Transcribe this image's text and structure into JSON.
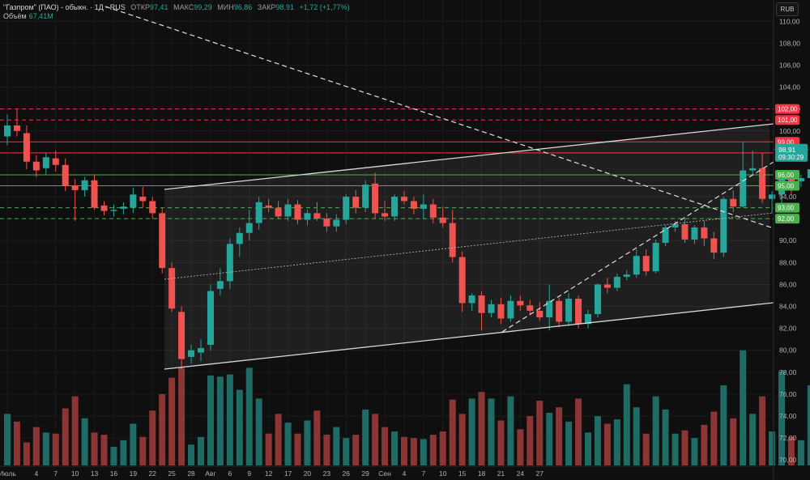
{
  "legend": {
    "title": "\"Газпром\" (ПАО) - обыкн. · 1Д · RUS",
    "open_label": "ОТКР",
    "open": "97,41",
    "high_label": "МАКС",
    "high": "99,29",
    "low_label": "МИН",
    "low": "96,86",
    "close_label": "ЗАКР",
    "close": "98,91",
    "change": "+1,72 (+1,77%)",
    "volume_label": "Объём",
    "volume": "67,41M"
  },
  "currency": "RUB",
  "price_tag": {
    "price": "98,91",
    "countdown": "09:30:29"
  },
  "colors": {
    "up": "#26a69a",
    "down": "#ef5350",
    "red_level": "#f23645",
    "green_level": "#4caf50",
    "background": "#0f0f0f"
  },
  "chart_data": {
    "type": "candlestick",
    "y_axis": {
      "min": 69.5,
      "max": 111.2,
      "ticks": [
        "70,00",
        "72,00",
        "74,00",
        "76,00",
        "78,00",
        "80,00",
        "82,00",
        "84,00",
        "86,00",
        "88,00",
        "90,00",
        "92,00",
        "94,00",
        "96,00",
        "98,00",
        "100,00",
        "102,00",
        "104,00",
        "106,00",
        "108,00",
        "110,00"
      ]
    },
    "x_ticks": [
      {
        "i": 0,
        "label": "Июль"
      },
      {
        "i": 3,
        "label": "4"
      },
      {
        "i": 5,
        "label": "7"
      },
      {
        "i": 7,
        "label": "10"
      },
      {
        "i": 9,
        "label": "13"
      },
      {
        "i": 11,
        "label": "16"
      },
      {
        "i": 13,
        "label": "19"
      },
      {
        "i": 15,
        "label": "22"
      },
      {
        "i": 17,
        "label": "25"
      },
      {
        "i": 19,
        "label": "28"
      },
      {
        "i": 21,
        "label": "Авг"
      },
      {
        "i": 23,
        "label": "6"
      },
      {
        "i": 25,
        "label": "9"
      },
      {
        "i": 27,
        "label": "12"
      },
      {
        "i": 29,
        "label": "17"
      },
      {
        "i": 31,
        "label": "20"
      },
      {
        "i": 33,
        "label": "23"
      },
      {
        "i": 35,
        "label": "26"
      },
      {
        "i": 37,
        "label": "29"
      },
      {
        "i": 39,
        "label": "Сен"
      },
      {
        "i": 41,
        "label": "4"
      },
      {
        "i": 43,
        "label": "7"
      },
      {
        "i": 45,
        "label": "10"
      },
      {
        "i": 47,
        "label": "15"
      },
      {
        "i": 49,
        "label": "18"
      },
      {
        "i": 51,
        "label": "21"
      },
      {
        "i": 53,
        "label": "24"
      },
      {
        "i": 55,
        "label": "27"
      }
    ],
    "candles": [
      {
        "o": 99.5,
        "h": 101.5,
        "l": 98.7,
        "c": 100.5,
        "v": 74.2
      },
      {
        "o": 100.5,
        "h": 102.0,
        "l": 99.5,
        "c": 100.0,
        "v": 73.5
      },
      {
        "o": 99.8,
        "h": 100.5,
        "l": 96.5,
        "c": 97.2,
        "v": 71.6
      },
      {
        "o": 97.2,
        "h": 97.8,
        "l": 95.8,
        "c": 96.4,
        "v": 73.0
      },
      {
        "o": 96.6,
        "h": 98.0,
        "l": 96.0,
        "c": 97.6,
        "v": 72.5
      },
      {
        "o": 97.5,
        "h": 98.2,
        "l": 96.3,
        "c": 96.9,
        "v": 72.4
      },
      {
        "o": 96.9,
        "h": 97.5,
        "l": 94.5,
        "c": 95.0,
        "v": 74.7
      },
      {
        "o": 95.0,
        "h": 95.6,
        "l": 91.8,
        "c": 94.6,
        "v": 75.8
      },
      {
        "o": 94.6,
        "h": 95.8,
        "l": 94.0,
        "c": 95.5,
        "v": 73.8
      },
      {
        "o": 95.5,
        "h": 96.0,
        "l": 92.8,
        "c": 93.0,
        "v": 72.5
      },
      {
        "o": 93.2,
        "h": 93.6,
        "l": 92.3,
        "c": 92.7,
        "v": 72.3
      },
      {
        "o": 92.7,
        "h": 93.3,
        "l": 92.2,
        "c": 92.8,
        "v": 71.2
      },
      {
        "o": 92.9,
        "h": 93.5,
        "l": 92.4,
        "c": 93.1,
        "v": 71.8
      },
      {
        "o": 93.0,
        "h": 94.8,
        "l": 92.5,
        "c": 94.2,
        "v": 73.3
      },
      {
        "o": 94.0,
        "h": 94.9,
        "l": 93.0,
        "c": 93.6,
        "v": 72.1
      },
      {
        "o": 93.6,
        "h": 94.0,
        "l": 92.0,
        "c": 92.5,
        "v": 74.5
      },
      {
        "o": 92.5,
        "h": 93.0,
        "l": 87.0,
        "c": 87.5,
        "v": 76.0
      },
      {
        "o": 87.5,
        "h": 88.0,
        "l": 83.5,
        "c": 83.8,
        "v": 77.5
      },
      {
        "o": 83.5,
        "h": 84.0,
        "l": 78.3,
        "c": 79.2,
        "v": 78.4
      },
      {
        "o": 79.4,
        "h": 80.5,
        "l": 78.8,
        "c": 80.0,
        "v": 71.4
      },
      {
        "o": 79.8,
        "h": 81.0,
        "l": 79.0,
        "c": 80.2,
        "v": 72.1
      },
      {
        "o": 80.5,
        "h": 86.0,
        "l": 80.0,
        "c": 85.4,
        "v": 77.7
      },
      {
        "o": 85.6,
        "h": 87.5,
        "l": 85.0,
        "c": 86.3,
        "v": 77.6
      },
      {
        "o": 86.3,
        "h": 90.2,
        "l": 85.6,
        "c": 89.7,
        "v": 77.8
      },
      {
        "o": 89.7,
        "h": 91.2,
        "l": 88.5,
        "c": 90.7,
        "v": 76.4
      },
      {
        "o": 90.7,
        "h": 92.8,
        "l": 90.0,
        "c": 91.6,
        "v": 78.4
      },
      {
        "o": 91.6,
        "h": 94.0,
        "l": 91.0,
        "c": 93.5,
        "v": 75.6
      },
      {
        "o": 93.2,
        "h": 93.8,
        "l": 92.6,
        "c": 93.0,
        "v": 72.4
      },
      {
        "o": 93.0,
        "h": 93.6,
        "l": 92.0,
        "c": 92.2,
        "v": 74.2
      },
      {
        "o": 92.2,
        "h": 93.8,
        "l": 91.8,
        "c": 93.3,
        "v": 73.4
      },
      {
        "o": 93.3,
        "h": 93.7,
        "l": 91.5,
        "c": 91.9,
        "v": 72.4
      },
      {
        "o": 91.9,
        "h": 92.8,
        "l": 91.4,
        "c": 92.5,
        "v": 73.6
      },
      {
        "o": 92.5,
        "h": 93.5,
        "l": 91.8,
        "c": 92.0,
        "v": 74.5
      },
      {
        "o": 92.0,
        "h": 92.5,
        "l": 90.8,
        "c": 91.3,
        "v": 72.3
      },
      {
        "o": 91.3,
        "h": 92.4,
        "l": 90.8,
        "c": 91.9,
        "v": 73.0
      },
      {
        "o": 91.9,
        "h": 94.2,
        "l": 91.5,
        "c": 94.0,
        "v": 72.0
      },
      {
        "o": 94.0,
        "h": 94.6,
        "l": 92.5,
        "c": 93.0,
        "v": 72.3
      },
      {
        "o": 93.0,
        "h": 95.5,
        "l": 92.6,
        "c": 95.1,
        "v": 74.6
      },
      {
        "o": 95.2,
        "h": 96.2,
        "l": 92.0,
        "c": 92.5,
        "v": 74.2
      },
      {
        "o": 92.5,
        "h": 93.6,
        "l": 91.8,
        "c": 92.2,
        "v": 73.0
      },
      {
        "o": 92.2,
        "h": 94.2,
        "l": 91.8,
        "c": 94.0,
        "v": 72.6
      },
      {
        "o": 94.0,
        "h": 94.5,
        "l": 93.3,
        "c": 93.6,
        "v": 72.1
      },
      {
        "o": 93.6,
        "h": 94.0,
        "l": 92.4,
        "c": 92.9,
        "v": 72.0
      },
      {
        "o": 92.9,
        "h": 94.2,
        "l": 92.0,
        "c": 93.3,
        "v": 71.9
      },
      {
        "o": 93.3,
        "h": 93.8,
        "l": 91.6,
        "c": 92.1,
        "v": 72.3
      },
      {
        "o": 92.1,
        "h": 93.1,
        "l": 91.2,
        "c": 91.6,
        "v": 72.6
      },
      {
        "o": 91.6,
        "h": 92.8,
        "l": 88.0,
        "c": 88.5,
        "v": 75.5
      },
      {
        "o": 88.5,
        "h": 89.0,
        "l": 83.5,
        "c": 84.3,
        "v": 74.2
      },
      {
        "o": 84.3,
        "h": 85.2,
        "l": 83.6,
        "c": 85.0,
        "v": 75.6
      },
      {
        "o": 85.0,
        "h": 85.4,
        "l": 81.8,
        "c": 83.4,
        "v": 76.2
      },
      {
        "o": 83.4,
        "h": 84.6,
        "l": 83.0,
        "c": 84.2,
        "v": 75.6
      },
      {
        "o": 84.2,
        "h": 84.8,
        "l": 82.4,
        "c": 82.9,
        "v": 73.6
      },
      {
        "o": 82.9,
        "h": 85.0,
        "l": 82.6,
        "c": 84.5,
        "v": 75.8
      },
      {
        "o": 84.5,
        "h": 85.0,
        "l": 83.6,
        "c": 84.1,
        "v": 72.8
      },
      {
        "o": 84.1,
        "h": 84.6,
        "l": 83.2,
        "c": 83.6,
        "v": 74.0
      },
      {
        "o": 83.6,
        "h": 84.4,
        "l": 82.7,
        "c": 83.0,
        "v": 75.4
      },
      {
        "o": 83.0,
        "h": 86.0,
        "l": 81.8,
        "c": 84.5,
        "v": 74.3
      },
      {
        "o": 84.5,
        "h": 84.8,
        "l": 82.1,
        "c": 82.6,
        "v": 74.8
      },
      {
        "o": 82.6,
        "h": 85.2,
        "l": 82.2,
        "c": 84.7,
        "v": 73.5
      },
      {
        "o": 84.7,
        "h": 85.0,
        "l": 82.0,
        "c": 82.4,
        "v": 75.6
      },
      {
        "o": 82.4,
        "h": 83.7,
        "l": 82.0,
        "c": 83.3,
        "v": 72.5
      },
      {
        "o": 83.3,
        "h": 86.1,
        "l": 83.0,
        "c": 86.0,
        "v": 74.0
      },
      {
        "o": 86.0,
        "h": 86.6,
        "l": 85.2,
        "c": 85.7,
        "v": 73.3
      },
      {
        "o": 85.7,
        "h": 87.0,
        "l": 85.4,
        "c": 86.7,
        "v": 73.7
      },
      {
        "o": 86.7,
        "h": 87.3,
        "l": 86.4,
        "c": 86.9,
        "v": 76.9
      },
      {
        "o": 86.9,
        "h": 89.2,
        "l": 86.6,
        "c": 88.6,
        "v": 74.8
      },
      {
        "o": 88.6,
        "h": 89.2,
        "l": 86.8,
        "c": 87.2,
        "v": 72.4
      },
      {
        "o": 87.2,
        "h": 90.1,
        "l": 87.0,
        "c": 89.8,
        "v": 75.8
      },
      {
        "o": 89.8,
        "h": 91.4,
        "l": 89.5,
        "c": 91.2,
        "v": 74.6
      },
      {
        "o": 91.2,
        "h": 91.8,
        "l": 90.8,
        "c": 91.5,
        "v": 72.4
      },
      {
        "o": 91.5,
        "h": 92.0,
        "l": 89.8,
        "c": 90.1,
        "v": 72.7
      },
      {
        "o": 90.1,
        "h": 91.4,
        "l": 89.7,
        "c": 91.2,
        "v": 72.0
      },
      {
        "o": 91.2,
        "h": 91.8,
        "l": 89.5,
        "c": 90.2,
        "v": 73.2
      },
      {
        "o": 90.2,
        "h": 90.8,
        "l": 88.3,
        "c": 88.9,
        "v": 74.4
      },
      {
        "o": 88.9,
        "h": 94.0,
        "l": 88.5,
        "c": 93.8,
        "v": 76.8
      },
      {
        "o": 93.8,
        "h": 94.6,
        "l": 92.6,
        "c": 93.1,
        "v": 73.8
      },
      {
        "o": 93.1,
        "h": 99.0,
        "l": 93.0,
        "c": 96.4,
        "v": 80.0
      },
      {
        "o": 96.4,
        "h": 98.2,
        "l": 96.0,
        "c": 96.6,
        "v": 74.2
      },
      {
        "o": 96.6,
        "h": 98.0,
        "l": 93.4,
        "c": 93.8,
        "v": 75.8
      },
      {
        "o": 93.8,
        "h": 94.5,
        "l": 92.5,
        "c": 94.2,
        "v": 72.6
      },
      {
        "o": 94.2,
        "h": 95.9,
        "l": 93.0,
        "c": 95.6,
        "v": 78.1
      },
      {
        "o": 95.6,
        "h": 95.9,
        "l": 94.2,
        "c": 95.4,
        "v": 72.1
      },
      {
        "o": 95.4,
        "h": 96.0,
        "l": 94.9,
        "c": 95.7,
        "v": 71.8
      },
      {
        "o": 95.7,
        "h": 97.2,
        "l": 95.4,
        "c": 96.5,
        "v": 76.8
      },
      {
        "o": 96.5,
        "h": 98.6,
        "l": 96.1,
        "c": 98.3,
        "v": 73.5
      }
    ],
    "horizontal_levels": [
      {
        "price": 102.0,
        "label": "102,00",
        "color": "red",
        "style": "dashed"
      },
      {
        "price": 101.0,
        "label": "101,00",
        "color": "red",
        "style": "dashed"
      },
      {
        "price": 99.0,
        "label": "99,00",
        "color": "red",
        "style": "solid"
      },
      {
        "price": 98.0,
        "label": "98,00",
        "color": "red",
        "style": "solid"
      },
      {
        "price": 96.0,
        "label": "96,00",
        "color": "green",
        "style": "solid"
      },
      {
        "price": 95.0,
        "label": "95,00",
        "color": "green",
        "style": "solid"
      },
      {
        "price": 93.0,
        "label": "93,00",
        "color": "green",
        "style": "dashed"
      },
      {
        "price": 92.0,
        "label": "92,00",
        "color": "green",
        "style": "dashed"
      }
    ]
  }
}
